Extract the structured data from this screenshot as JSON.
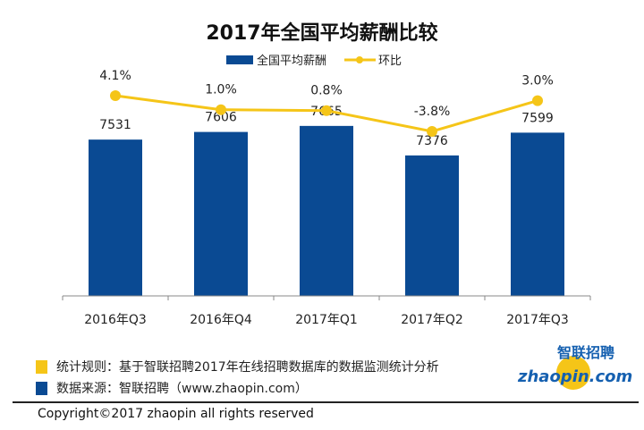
{
  "chart_data": {
    "type": "bar+line",
    "title": "2017年全国平均薪酬比较",
    "categories": [
      "2016年Q3",
      "2016年Q4",
      "2017年Q1",
      "2017年Q2",
      "2017年Q3"
    ],
    "series": [
      {
        "name": "全国平均薪酬",
        "type": "bar",
        "values": [
          7531,
          7606,
          7665,
          7376,
          7599
        ],
        "labels": [
          "7531",
          "7606",
          "7665",
          "7376",
          "7599"
        ],
        "color": "#0a4a93"
      },
      {
        "name": "环比",
        "type": "line",
        "values": [
          4.1,
          1.0,
          0.8,
          -3.8,
          3.0
        ],
        "labels": [
          "4.1%",
          "1.0%",
          "0.8%",
          "-3.8%",
          "3.0%"
        ],
        "color": "#f5c518"
      }
    ],
    "ylim": [
      6000,
      9000
    ],
    "grid": false,
    "legend": "top"
  },
  "footer": {
    "note1": "统计规则：基于智联招聘2017年在线招聘数据库的数据监测统计分析",
    "note2": "数据来源：智联招聘（www.zhaopin.com）",
    "copyright": "Copyright©2017 zhaopin all rights reserved",
    "logo_cn": "智联招聘",
    "logo_en": "zhaopin.com",
    "color_yellow": "#f5c518",
    "color_blue": "#0a4a93"
  }
}
